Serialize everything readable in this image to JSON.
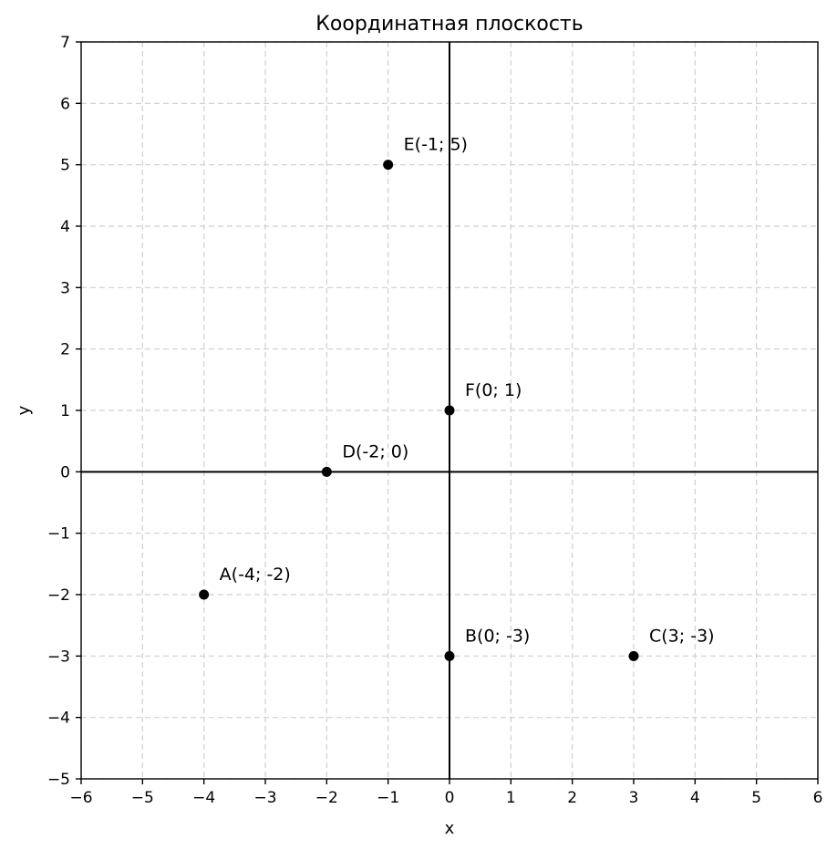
{
  "chart_data": {
    "type": "scatter",
    "title": "Координатная плоскость",
    "xlabel": "x",
    "ylabel": "y",
    "xlim": [
      -6,
      6
    ],
    "ylim": [
      -5,
      7
    ],
    "grid": true,
    "x_ticks": [
      -6,
      -5,
      -4,
      -3,
      -2,
      -1,
      0,
      1,
      2,
      3,
      4,
      5,
      6
    ],
    "y_ticks": [
      -5,
      -4,
      -3,
      -2,
      -1,
      0,
      1,
      2,
      3,
      4,
      5,
      6,
      7
    ],
    "x_tick_labels": [
      "−6",
      "−5",
      "−4",
      "−3",
      "−2",
      "−1",
      "0",
      "1",
      "2",
      "3",
      "4",
      "5",
      "6"
    ],
    "y_tick_labels": [
      "−5",
      "−4",
      "−3",
      "−2",
      "−1",
      "0",
      "1",
      "2",
      "3",
      "4",
      "5",
      "6",
      "7"
    ],
    "points": [
      {
        "x": -4,
        "y": -2,
        "label": "A(-4; -2)"
      },
      {
        "x": 0,
        "y": -3,
        "label": "B(0; -3)"
      },
      {
        "x": 3,
        "y": -3,
        "label": "C(3; -3)"
      },
      {
        "x": -2,
        "y": 0,
        "label": "D(-2; 0)"
      },
      {
        "x": -1,
        "y": 5,
        "label": "E(-1; 5)"
      },
      {
        "x": 0,
        "y": 1,
        "label": "F(0; 1)"
      }
    ],
    "point_color": "#000000"
  }
}
